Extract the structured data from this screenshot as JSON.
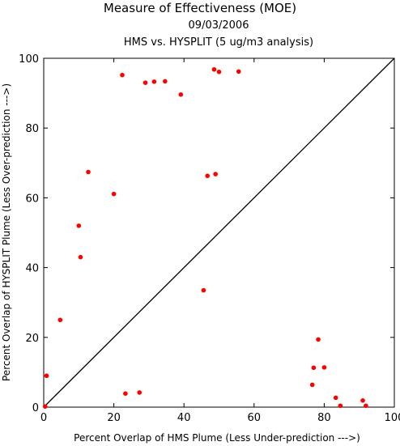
{
  "chart_data": {
    "type": "scatter",
    "title": "Measure of Effectiveness (MOE)",
    "subtitle": "09/03/2006",
    "subtitle2": "HMS vs. HYSPLIT  (5 ug/m3 analysis)",
    "xlabel": "Percent Overlap of HMS Plume (Less Under-prediction --->)",
    "ylabel": "Percent Overlap of HYSPLIT Plume (Less Over-prediction --->)",
    "xlim": [
      0,
      100
    ],
    "ylim": [
      0,
      100
    ],
    "xticks": [
      0,
      20,
      40,
      60,
      80,
      100
    ],
    "yticks": [
      0,
      20,
      40,
      60,
      80,
      100
    ],
    "grid": false,
    "reference_line": "diagonal y = x",
    "point_color": "#ff0000",
    "points": [
      {
        "x": 0.4,
        "y": 0.2
      },
      {
        "x": 0.8,
        "y": 9.0
      },
      {
        "x": 4.7,
        "y": 25.0
      },
      {
        "x": 10.0,
        "y": 52.0
      },
      {
        "x": 10.5,
        "y": 43.0
      },
      {
        "x": 12.7,
        "y": 67.4
      },
      {
        "x": 20.0,
        "y": 61.1
      },
      {
        "x": 22.4,
        "y": 95.2
      },
      {
        "x": 23.3,
        "y": 3.9
      },
      {
        "x": 27.3,
        "y": 4.2
      },
      {
        "x": 29.0,
        "y": 93.0
      },
      {
        "x": 31.5,
        "y": 93.3
      },
      {
        "x": 34.6,
        "y": 93.4
      },
      {
        "x": 39.1,
        "y": 89.6
      },
      {
        "x": 45.6,
        "y": 33.5
      },
      {
        "x": 46.7,
        "y": 66.3
      },
      {
        "x": 48.6,
        "y": 96.8
      },
      {
        "x": 49.0,
        "y": 66.8
      },
      {
        "x": 50.0,
        "y": 96.1
      },
      {
        "x": 55.6,
        "y": 96.2
      },
      {
        "x": 76.6,
        "y": 6.4
      },
      {
        "x": 77.0,
        "y": 11.3
      },
      {
        "x": 78.3,
        "y": 19.4
      },
      {
        "x": 80.0,
        "y": 11.4
      },
      {
        "x": 83.3,
        "y": 2.7
      },
      {
        "x": 84.6,
        "y": 0.4
      },
      {
        "x": 91.0,
        "y": 1.9
      },
      {
        "x": 91.9,
        "y": 0.4
      }
    ]
  }
}
